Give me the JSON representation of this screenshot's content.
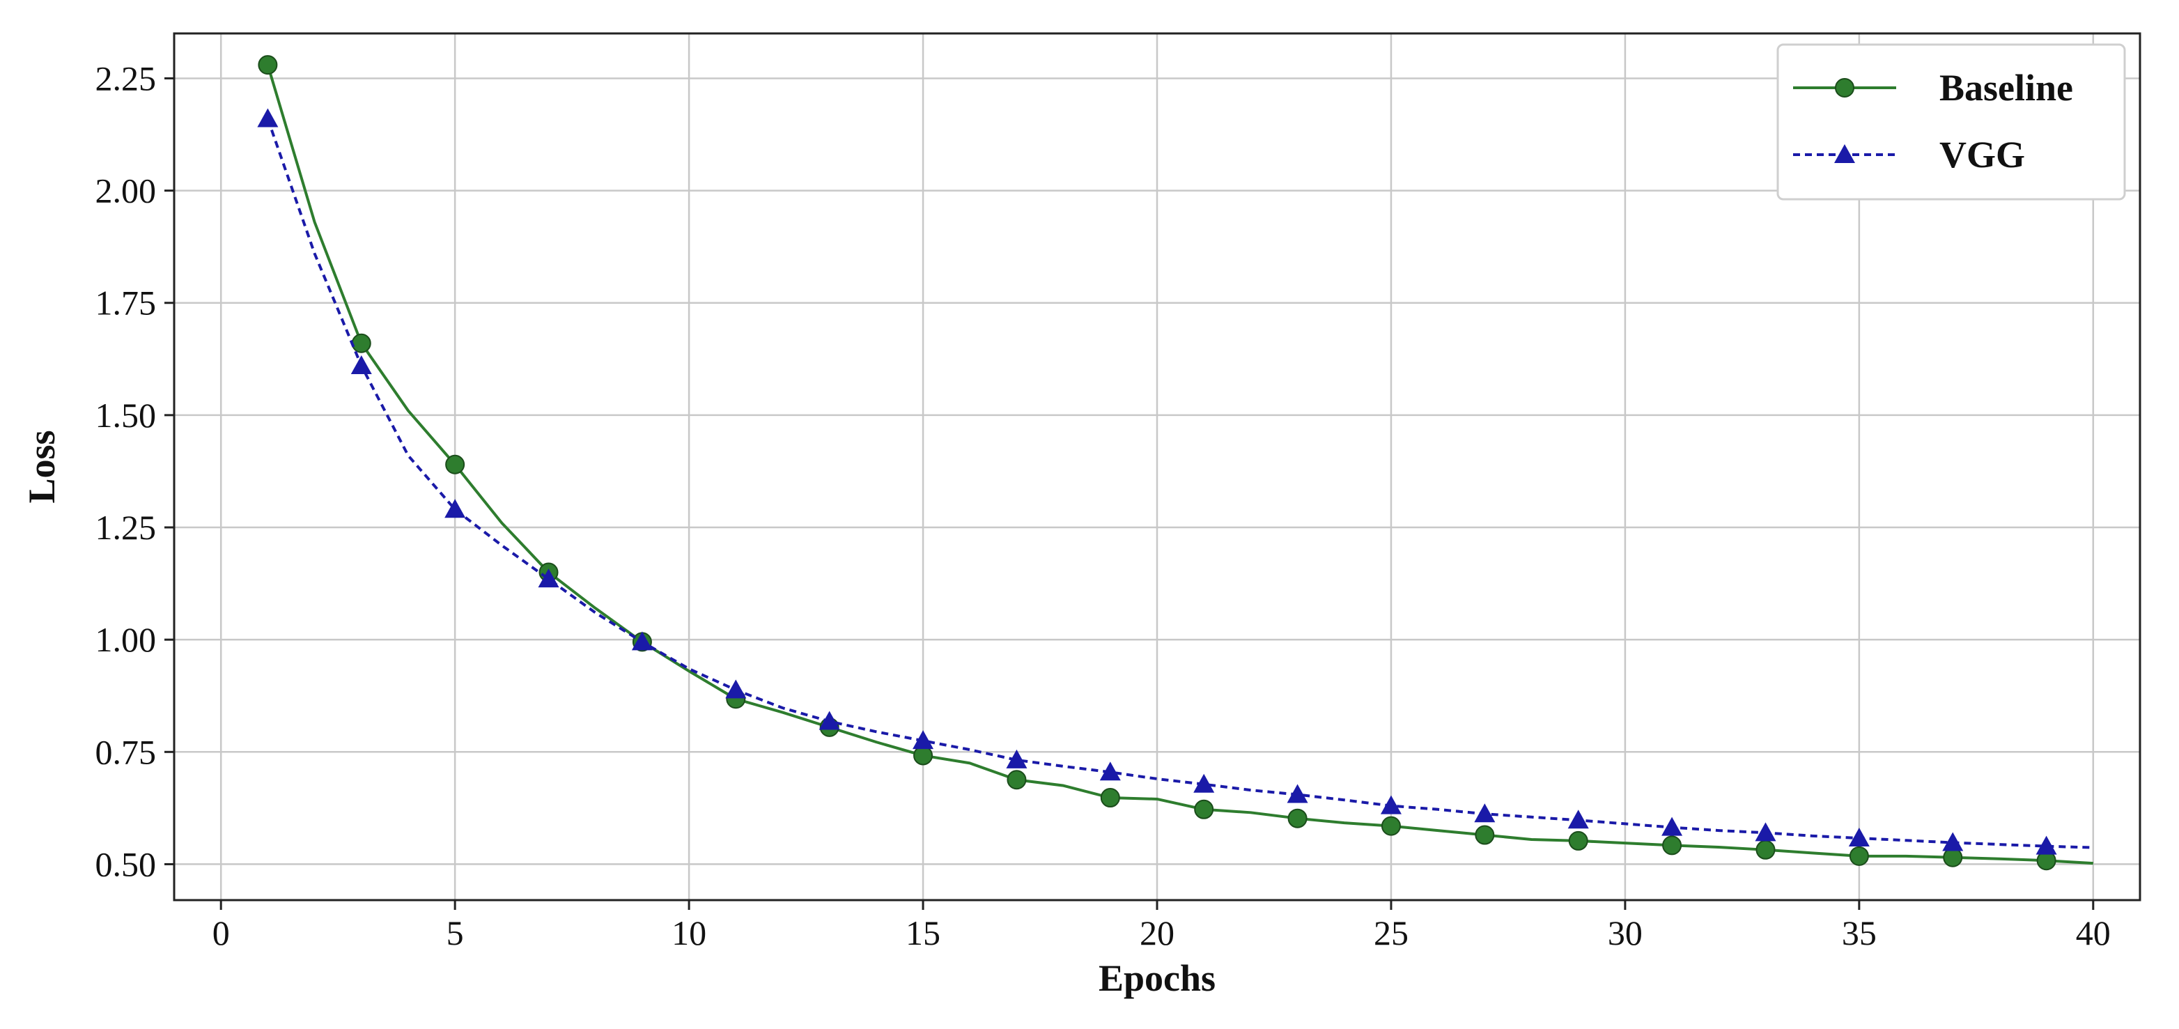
{
  "chart_data": {
    "type": "line",
    "xlabel": "Epochs",
    "ylabel": "Loss",
    "xlim": [
      -1,
      41
    ],
    "ylim": [
      0.42,
      2.35
    ],
    "xticks": [
      0,
      5,
      10,
      15,
      20,
      25,
      30,
      35,
      40
    ],
    "yticks": [
      0.5,
      0.75,
      1.0,
      1.25,
      1.5,
      1.75,
      2.0,
      2.25
    ],
    "xtick_labels": [
      "0",
      "5",
      "10",
      "15",
      "20",
      "25",
      "30",
      "35",
      "40"
    ],
    "ytick_labels": [
      "0.50",
      "0.75",
      "1.00",
      "1.25",
      "1.50",
      "1.75",
      "2.00",
      "2.25"
    ],
    "grid": true,
    "legend_position": "top-right",
    "x": [
      1,
      2,
      3,
      4,
      5,
      6,
      7,
      8,
      9,
      10,
      11,
      12,
      13,
      14,
      15,
      16,
      17,
      18,
      19,
      20,
      21,
      22,
      23,
      24,
      25,
      26,
      27,
      28,
      29,
      30,
      31,
      32,
      33,
      34,
      35,
      36,
      37,
      38,
      39,
      40
    ],
    "series": [
      {
        "name": "Baseline",
        "color": "#2e7d2e",
        "style": "solid",
        "marker": "circle",
        "marker_every": 2,
        "values": [
          2.28,
          1.93,
          1.66,
          1.51,
          1.39,
          1.26,
          1.15,
          1.07,
          0.995,
          0.93,
          0.868,
          0.838,
          0.805,
          0.772,
          0.742,
          0.725,
          0.688,
          0.675,
          0.648,
          0.645,
          0.622,
          0.615,
          0.602,
          0.592,
          0.585,
          0.575,
          0.565,
          0.555,
          0.552,
          0.547,
          0.542,
          0.538,
          0.532,
          0.525,
          0.518,
          0.518,
          0.515,
          0.512,
          0.508,
          0.502
        ]
      },
      {
        "name": "VGG",
        "color": "#1a1aa8",
        "style": "dashed",
        "marker": "triangle",
        "marker_every": 2,
        "values": [
          2.16,
          1.86,
          1.61,
          1.41,
          1.29,
          1.21,
          1.135,
          1.06,
          0.995,
          0.935,
          0.888,
          0.848,
          0.818,
          0.795,
          0.775,
          0.755,
          0.732,
          0.718,
          0.705,
          0.69,
          0.678,
          0.665,
          0.655,
          0.643,
          0.63,
          0.622,
          0.612,
          0.605,
          0.598,
          0.59,
          0.582,
          0.575,
          0.57,
          0.563,
          0.558,
          0.553,
          0.548,
          0.544,
          0.54,
          0.537
        ]
      }
    ]
  }
}
